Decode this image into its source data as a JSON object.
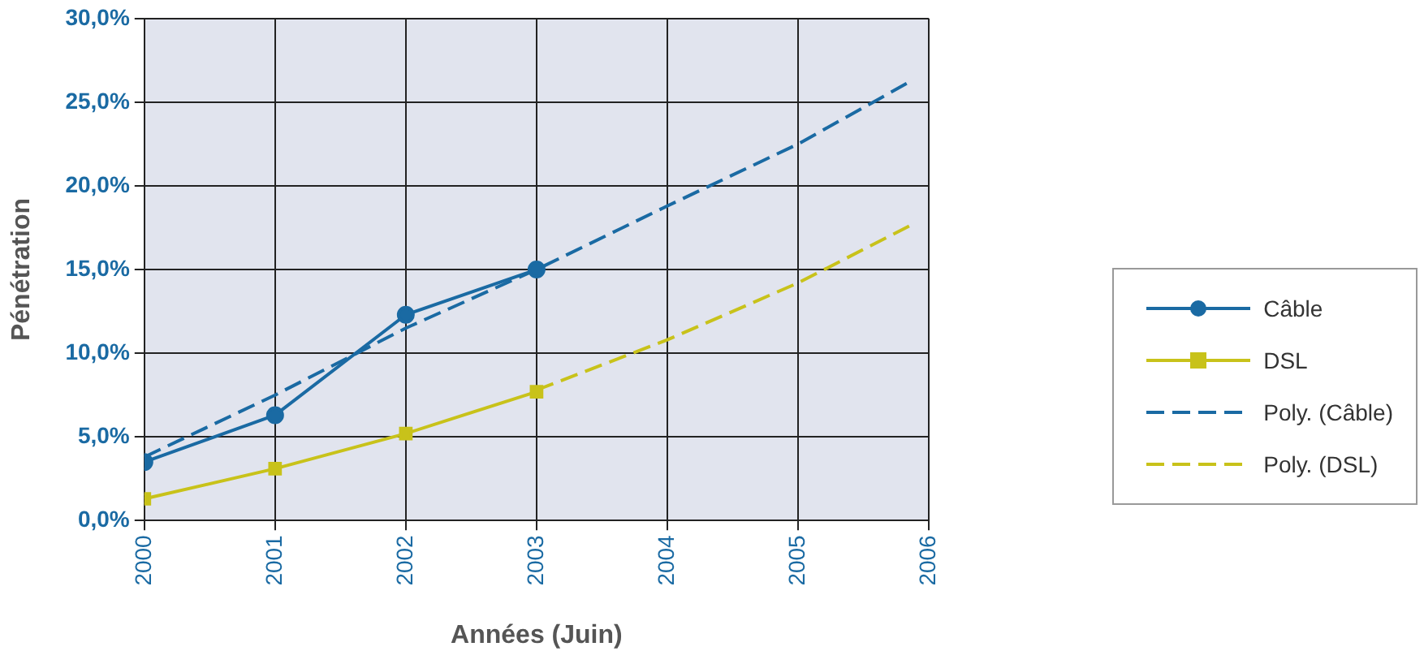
{
  "chart_data": {
    "type": "line",
    "xlabel": "Années (Juin)",
    "ylabel": "Pénétration",
    "x": [
      2000,
      2001,
      2002,
      2003
    ],
    "series": [
      {
        "name": "Câble",
        "color": "#1a6aa3",
        "values": [
          3.5,
          6.3,
          12.3,
          15.0
        ],
        "marker": "circle",
        "line_style": "solid"
      },
      {
        "name": "DSL",
        "color": "#c8c21a",
        "values": [
          1.3,
          3.1,
          5.2,
          7.7
        ],
        "marker": "square",
        "line_style": "solid"
      },
      {
        "name": "Poly. (Câble)",
        "color": "#1a6aa3",
        "x": [
          2000,
          2001,
          2002,
          2003,
          2004,
          2005,
          2005.85
        ],
        "values": [
          3.8,
          7.5,
          11.5,
          15.0,
          18.8,
          22.5,
          26.2
        ],
        "marker": "none",
        "line_style": "dashed"
      },
      {
        "name": "Poly. (DSL)",
        "color": "#c8c21a",
        "x": [
          2003,
          2004,
          2005,
          2005.85
        ],
        "values": [
          7.8,
          10.8,
          14.2,
          17.6
        ],
        "marker": "none",
        "line_style": "dashed"
      }
    ],
    "xlim": [
      2000,
      2006
    ],
    "xticks": [
      2000,
      2001,
      2002,
      2003,
      2004,
      2005,
      2006
    ],
    "ylim": [
      0,
      30
    ],
    "yticks": [
      {
        "value": 0,
        "label": "0,0%"
      },
      {
        "value": 5,
        "label": "5,0%"
      },
      {
        "value": 10,
        "label": "10,0%"
      },
      {
        "value": 15,
        "label": "15,0%"
      },
      {
        "value": 20,
        "label": "20,0%"
      },
      {
        "value": 25,
        "label": "25,0%"
      },
      {
        "value": 30,
        "label": "30,0%"
      }
    ],
    "grid": true,
    "legend": "right"
  }
}
